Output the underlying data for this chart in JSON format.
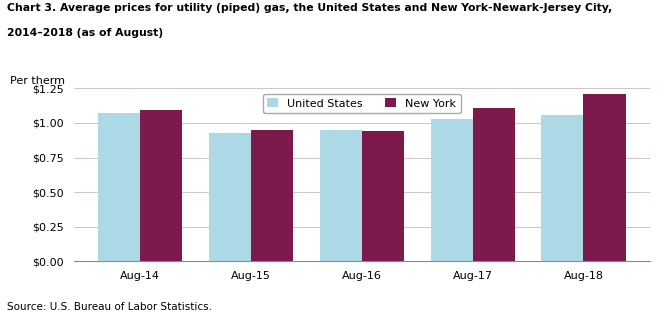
{
  "title_line1": "Chart 3. Average prices for utility (piped) gas, the United States and New York-Newark-Jersey City,",
  "title_line2": "2014–2018 (as of August)",
  "ylabel": "Per therm",
  "categories": [
    "Aug-14",
    "Aug-15",
    "Aug-16",
    "Aug-17",
    "Aug-18"
  ],
  "us_values": [
    1.07,
    0.93,
    0.95,
    1.03,
    1.06
  ],
  "ny_values": [
    1.09,
    0.95,
    0.94,
    1.11,
    1.21
  ],
  "us_color": "#ADD8E6",
  "ny_color": "#7B1A4B",
  "us_label": "United States",
  "ny_label": "New York",
  "ylim": [
    0,
    1.25
  ],
  "yticks": [
    0.0,
    0.25,
    0.5,
    0.75,
    1.0,
    1.25
  ],
  "source": "Source: U.S. Bureau of Labor Statistics.",
  "bar_width": 0.38,
  "grid_color": "#D4C4C4",
  "background_color": "#ffffff"
}
